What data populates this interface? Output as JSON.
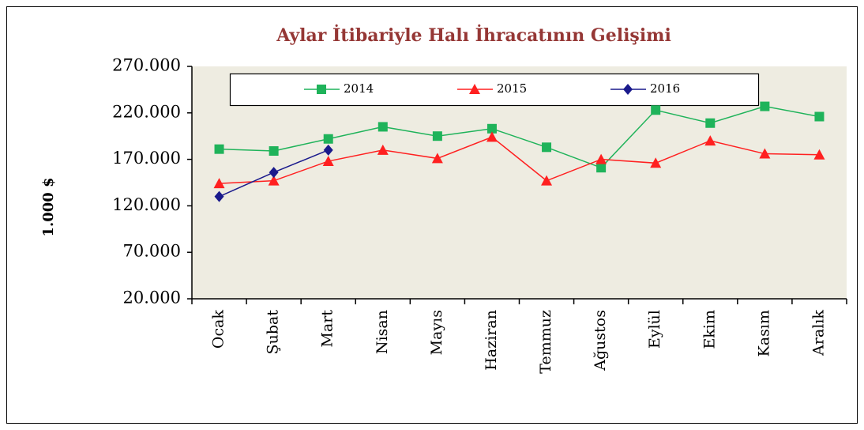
{
  "chart_data": {
    "type": "line",
    "title": "Aylar İtibariyle Halı İhracatının Gelişimi",
    "y_label": "1.000 $",
    "categories": [
      "Ocak",
      "Şubat",
      "Mart",
      "Nisan",
      "Mayıs",
      "Haziran",
      "Temmuz",
      "Ağustos",
      "Eylül",
      "Ekim",
      "Kasım",
      "Aralık"
    ],
    "series": [
      {
        "name": "2014",
        "color": "#1fb35a",
        "marker": "square",
        "values": [
          181000,
          179000,
          192000,
          205000,
          195000,
          203000,
          183000,
          161000,
          223000,
          209000,
          227000,
          216000
        ]
      },
      {
        "name": "2015",
        "color": "#ff2020",
        "marker": "triangle",
        "values": [
          144000,
          147000,
          168000,
          180000,
          171000,
          194000,
          147000,
          170000,
          166000,
          190000,
          176000,
          175000
        ]
      },
      {
        "name": "2016",
        "color": "#1a1a8c",
        "marker": "diamond",
        "values": [
          130000,
          156000,
          180000,
          null,
          null,
          null,
          null,
          null,
          null,
          null,
          null,
          null
        ]
      }
    ],
    "ylim": [
      20000,
      270000
    ],
    "yticks": [
      {
        "value": 20000,
        "label": "20.000"
      },
      {
        "value": 70000,
        "label": "70.000"
      },
      {
        "value": 120000,
        "label": "120.000"
      },
      {
        "value": 170000,
        "label": "170.000"
      },
      {
        "value": 220000,
        "label": "220.000"
      },
      {
        "value": 270000,
        "label": "270.000"
      }
    ],
    "grid": false,
    "legend": "top"
  }
}
